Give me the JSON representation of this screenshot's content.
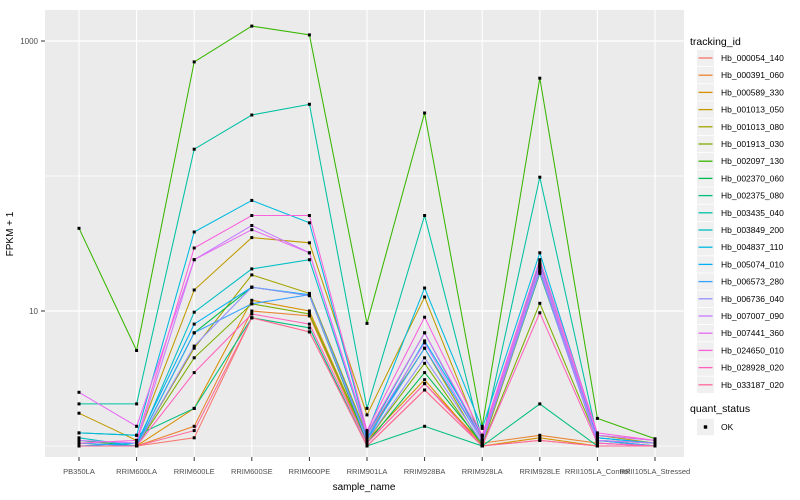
{
  "figure": {
    "background": "#FFFFFF",
    "panel_background": "#EBEBEB",
    "grid_color": "#FFFFFF",
    "axis_text_color": "#4D4D4D",
    "axis_title_color": "#000000",
    "tick_color": "#333333",
    "legend_key_background": "#F0F0F0",
    "point_color": "#000000"
  },
  "chart_data": {
    "type": "line",
    "title": "",
    "xlabel": "sample_name",
    "ylabel": "FPKM + 1",
    "y_scale": "log10",
    "y_tick_values": [
      10,
      1000
    ],
    "y_tick_labels": [
      "10",
      "1000"
    ],
    "y_minor_values": [
      1,
      100
    ],
    "ylim_log10": [
      -0.09,
      3.23
    ],
    "grid": true,
    "legend_position": "right",
    "marker": "filled-black-square",
    "categories": [
      "PB350LA",
      "RRIM600LA",
      "RRIM600LE",
      "RRIM600SE",
      "RRIM600PE",
      "RRIM901LA",
      "RRIM928BA",
      "RRIM928LA",
      "RRIM928LE",
      "RRII105LA_Control",
      "RRII105LA_Stressed"
    ],
    "series": [
      {
        "name": "Hb_000054_140",
        "color": "#F8766D",
        "values": [
          1.0,
          1.0,
          1.15,
          8.9,
          7.0,
          1.0,
          2.6,
          1.0,
          1.1,
          1.0,
          1.0
        ]
      },
      {
        "name": "Hb_000391_060",
        "color": "#EA8331",
        "values": [
          1.0,
          1.0,
          1.4,
          10.0,
          9.2,
          1.05,
          2.9,
          1.05,
          1.2,
          1.05,
          1.0
        ]
      },
      {
        "name": "Hb_000589_330",
        "color": "#D89000",
        "values": [
          1.05,
          1.0,
          1.9,
          12.0,
          10.0,
          1.1,
          3.1,
          1.0,
          1.15,
          1.0,
          1.0
        ]
      },
      {
        "name": "Hb_001013_050",
        "color": "#C09B00",
        "values": [
          1.75,
          1.1,
          14.3,
          35.0,
          32.0,
          1.7,
          12.7,
          1.1,
          22.0,
          1.2,
          1.05
        ]
      },
      {
        "name": "Hb_001013_080",
        "color": "#A3A500",
        "values": [
          1.0,
          1.0,
          5.3,
          18.5,
          13.5,
          1.2,
          5.3,
          1.0,
          19.5,
          1.1,
          1.0
        ]
      },
      {
        "name": "Hb_001913_030",
        "color": "#7CAE00",
        "values": [
          1.0,
          1.0,
          4.5,
          11.3,
          9.5,
          1.1,
          4.1,
          1.0,
          11.4,
          1.1,
          1.05
        ]
      },
      {
        "name": "Hb_002097_130",
        "color": "#39B600",
        "values": [
          41,
          5.1,
          700,
          1290,
          1110,
          8.1,
          293,
          1.4,
          530,
          1.6,
          1.13
        ]
      },
      {
        "name": "Hb_002370_060",
        "color": "#00BB4E",
        "values": [
          1.1,
          1.0,
          6.9,
          15.0,
          13.0,
          1.05,
          3.5,
          1.05,
          19.0,
          1.1,
          1.0
        ]
      },
      {
        "name": "Hb_002375_080",
        "color": "#00BF7D",
        "values": [
          1.25,
          1.2,
          1.9,
          8.9,
          7.5,
          1.0,
          1.4,
          1.0,
          2.05,
          1.0,
          1.0
        ]
      },
      {
        "name": "Hb_003435_040",
        "color": "#00C1A3",
        "values": [
          2.05,
          2.05,
          158,
          283,
          340,
          1.9,
          51,
          1.1,
          98,
          1.15,
          1.05
        ]
      },
      {
        "name": "Hb_003849_200",
        "color": "#00BFC4",
        "values": [
          1.15,
          1.0,
          9.8,
          20.5,
          24.0,
          1.2,
          6.9,
          1.1,
          23.0,
          1.1,
          1.0
        ]
      },
      {
        "name": "Hb_004837_110",
        "color": "#00BAE0",
        "values": [
          1.25,
          1.2,
          38.5,
          66.0,
          45.0,
          1.25,
          14.8,
          1.35,
          27.0,
          1.2,
          1.1
        ]
      },
      {
        "name": "Hb_005074_010",
        "color": "#00B0F6",
        "values": [
          1.0,
          1.05,
          8.0,
          15.0,
          13.2,
          1.1,
          6.0,
          1.2,
          21.0,
          1.15,
          1.05
        ]
      },
      {
        "name": "Hb_006573_280",
        "color": "#35A2FF",
        "values": [
          1.05,
          1.0,
          6.9,
          11.3,
          13.2,
          1.15,
          5.3,
          1.1,
          20.0,
          1.1,
          1.0
        ]
      },
      {
        "name": "Hb_006736_040",
        "color": "#9590FF",
        "values": [
          1.0,
          1.0,
          5.5,
          15.0,
          13.0,
          1.1,
          4.5,
          1.05,
          19.5,
          1.05,
          1.0
        ]
      },
      {
        "name": "Hb_007007_090",
        "color": "#C77CFF",
        "values": [
          1.1,
          1.05,
          24.0,
          43.0,
          27.0,
          1.2,
          5.8,
          1.1,
          21.0,
          1.1,
          1.05
        ]
      },
      {
        "name": "Hb_007441_360",
        "color": "#E76BF3",
        "values": [
          2.5,
          1.4,
          24.0,
          40.0,
          27.0,
          1.25,
          6.9,
          1.15,
          22.0,
          1.2,
          1.1
        ]
      },
      {
        "name": "Hb_024650_010",
        "color": "#FA62DB",
        "values": [
          1.05,
          1.1,
          29.3,
          51.0,
          51.0,
          1.3,
          9.0,
          1.2,
          24.0,
          1.25,
          1.1
        ]
      },
      {
        "name": "Hb_028928_020",
        "color": "#FF62BC",
        "values": [
          1.0,
          1.0,
          3.5,
          9.5,
          8.0,
          1.05,
          2.9,
          1.0,
          9.7,
          1.05,
          1.0
        ]
      },
      {
        "name": "Hb_033187_020",
        "color": "#FF6A98",
        "values": [
          1.0,
          1.0,
          1.3,
          8.9,
          7.0,
          1.0,
          2.6,
          1.0,
          1.1,
          1.0,
          1.0
        ]
      }
    ],
    "legend": {
      "color_title": "tracking_id",
      "shape_title": "quant_status",
      "shape_items": [
        {
          "label": "OK"
        }
      ]
    }
  }
}
